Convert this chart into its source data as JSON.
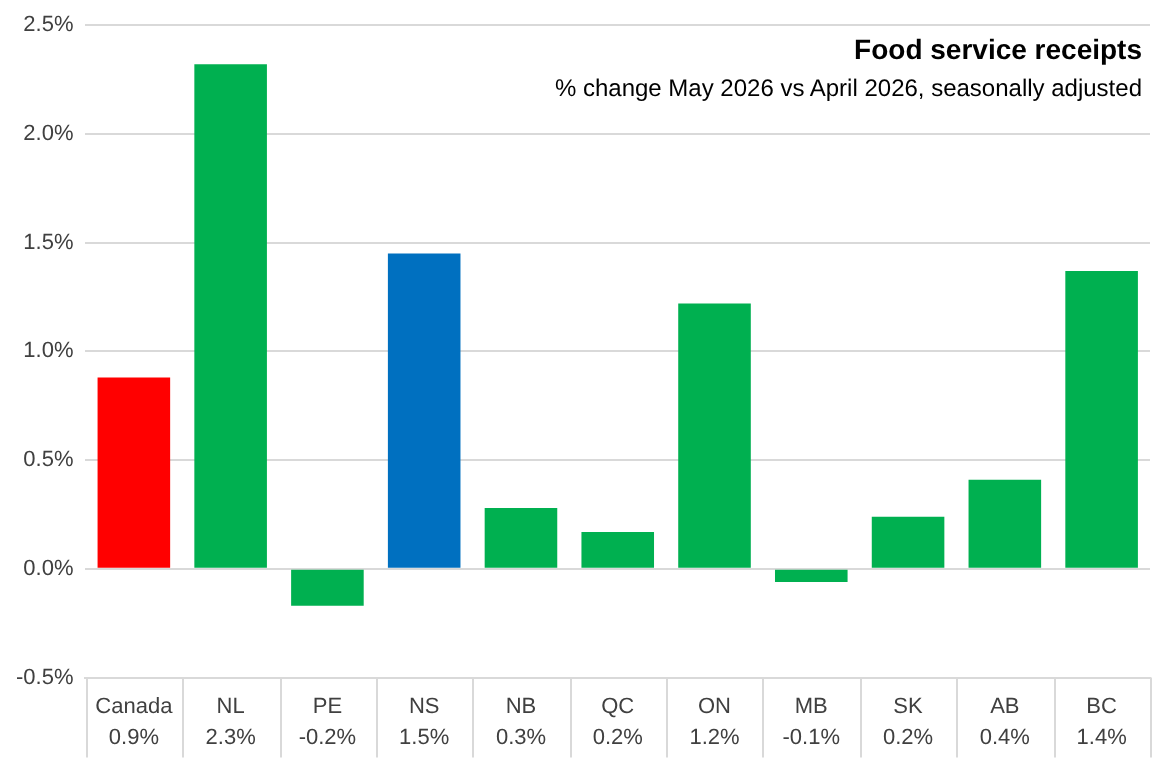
{
  "chart_data": {
    "type": "bar",
    "title": "Food service receipts",
    "subtitle": "% change May 2026 vs April 2026, seasonally adjusted",
    "categories": [
      "Canada",
      "NL",
      "PE",
      "NS",
      "NB",
      "QC",
      "ON",
      "MB",
      "SK",
      "AB",
      "BC"
    ],
    "values": [
      0.88,
      2.32,
      -0.17,
      1.45,
      0.28,
      0.17,
      1.22,
      -0.06,
      0.24,
      0.41,
      1.37
    ],
    "colors": [
      "#ff0000",
      "#00b050",
      "#00b050",
      "#0070c0",
      "#00b050",
      "#00b050",
      "#00b050",
      "#00b050",
      "#00b050",
      "#00b050",
      "#00b050"
    ],
    "value_labels": [
      "0.9%",
      "2.3%",
      "-0.2%",
      "1.5%",
      "0.3%",
      "0.2%",
      "1.2%",
      "-0.1%",
      "0.2%",
      "0.4%",
      "1.4%"
    ],
    "ylim": [
      -0.5,
      2.5
    ],
    "yticks": [
      {
        "value": -0.5,
        "label": "-0.5%"
      },
      {
        "value": 0,
        "label": "0.0%"
      },
      {
        "value": 0.5,
        "label": "0.5%"
      },
      {
        "value": 1,
        "label": "1.0%"
      },
      {
        "value": 1.5,
        "label": "1.5%"
      },
      {
        "value": 2,
        "label": "2.0%"
      },
      {
        "value": 2.5,
        "label": "2.5%"
      }
    ],
    "grid": "y",
    "legend": false
  }
}
